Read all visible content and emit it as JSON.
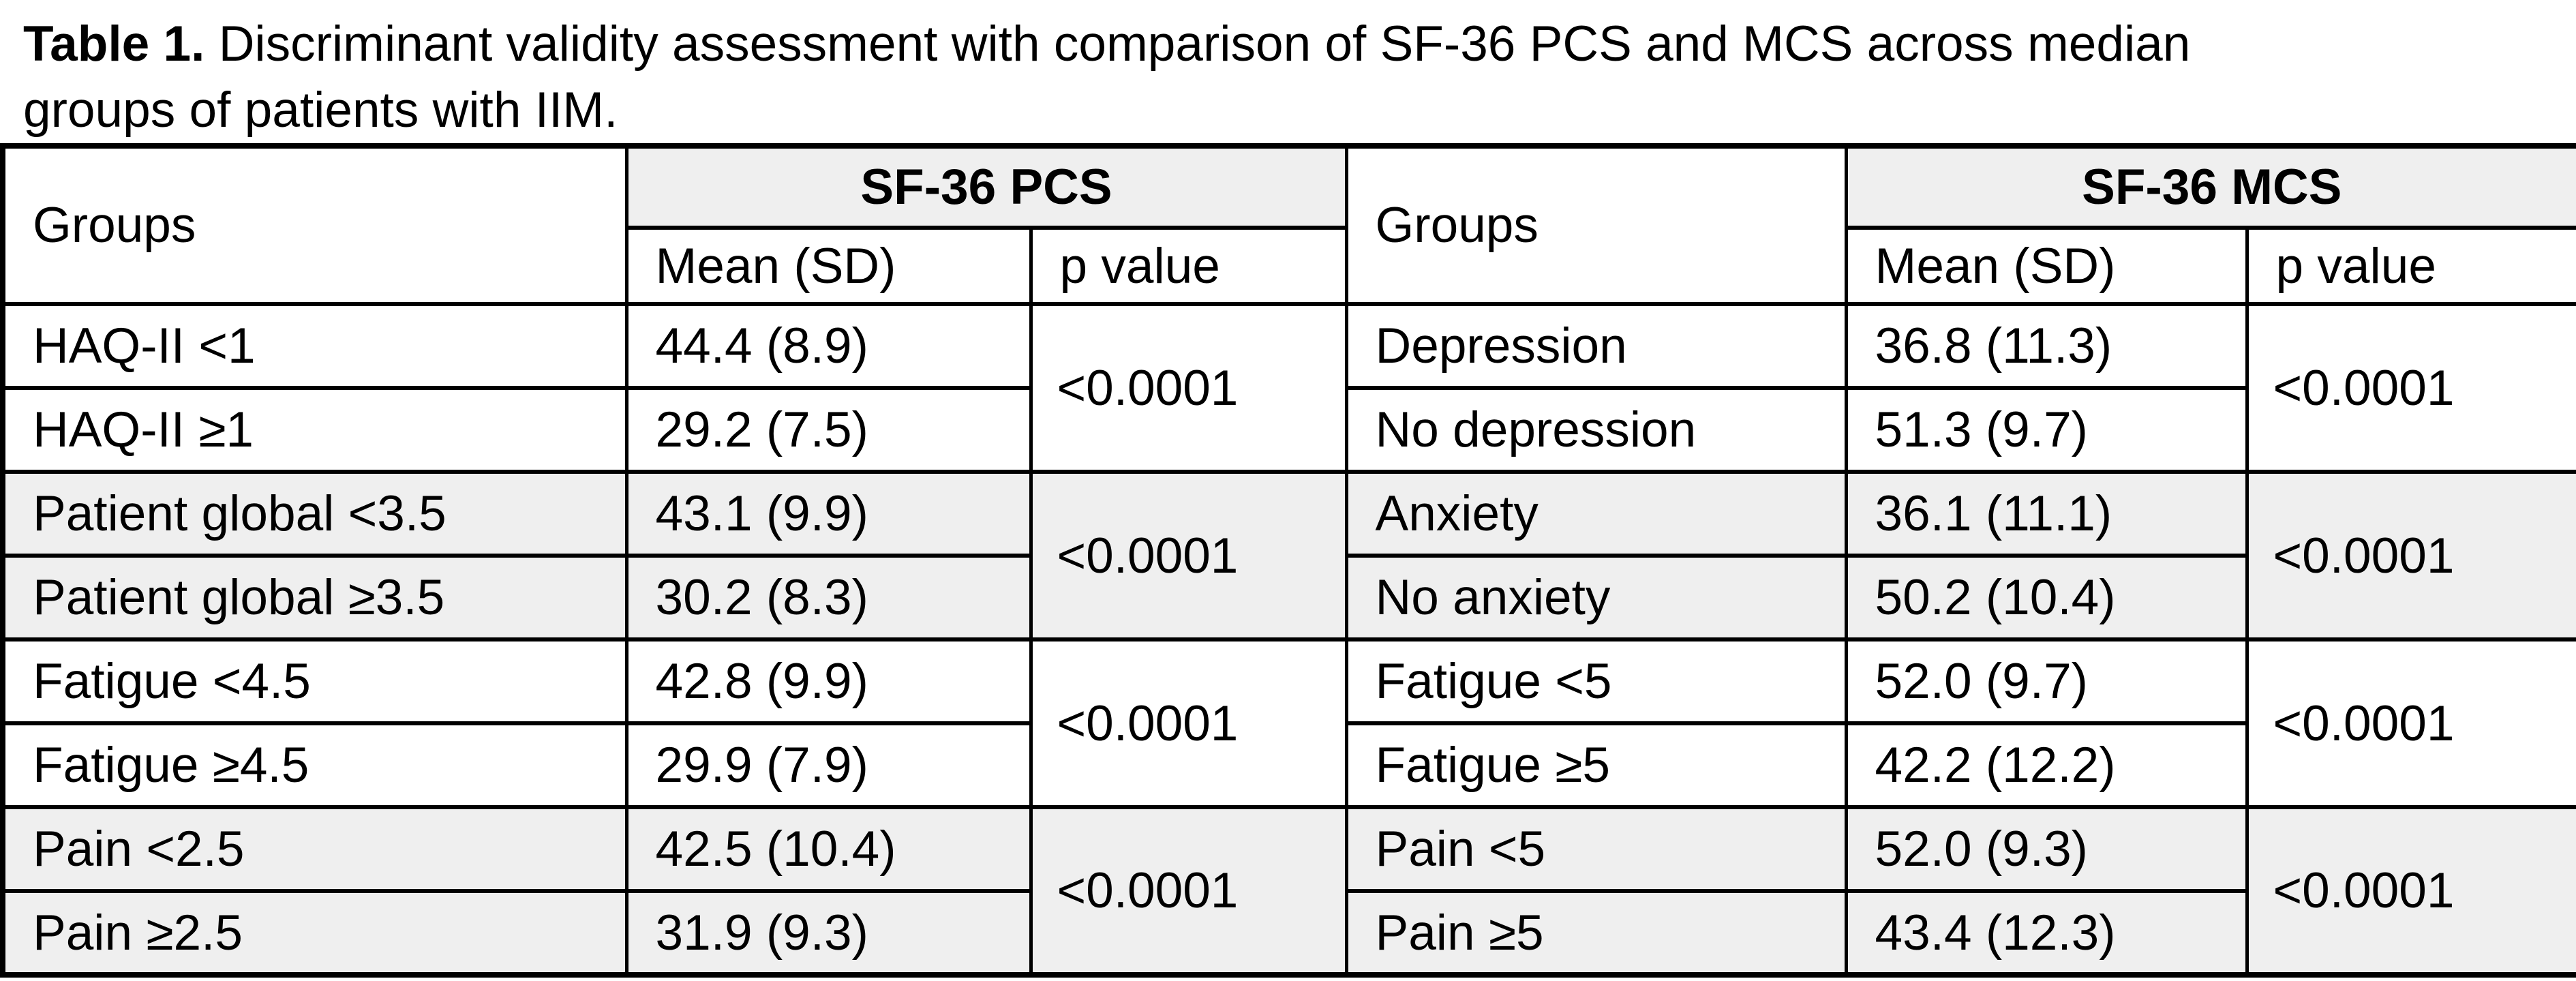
{
  "title": {
    "label": "Table 1.",
    "line1_rest": " Discriminant validity assessment with comparison of SF-36 PCS and MCS across median",
    "line2": "groups of patients with IIM."
  },
  "colors": {
    "shaded_row": "#efefef",
    "border": "#000000",
    "background": "#ffffff"
  },
  "table": {
    "left": {
      "groups_header": "Groups",
      "scale_header": "SF-36 PCS",
      "mean_header": "Mean (SD)",
      "p_header": "p value",
      "pairs": [
        {
          "row1": {
            "group": "HAQ-II <1",
            "mean": "44.4 (8.9)"
          },
          "row2": {
            "group": "HAQ-II ≥1",
            "mean": "29.2 (7.5)"
          },
          "p": "<0.0001"
        },
        {
          "row1": {
            "group": "Patient global <3.5",
            "mean": "43.1 (9.9)"
          },
          "row2": {
            "group": "Patient global ≥3.5",
            "mean": "30.2 (8.3)"
          },
          "p": "<0.0001"
        },
        {
          "row1": {
            "group": "Fatigue <4.5",
            "mean": "42.8 (9.9)"
          },
          "row2": {
            "group": "Fatigue ≥4.5",
            "mean": "29.9 (7.9)"
          },
          "p": "<0.0001"
        },
        {
          "row1": {
            "group": "Pain <2.5",
            "mean": "42.5 (10.4)"
          },
          "row2": {
            "group": "Pain ≥2.5",
            "mean": "31.9 (9.3)"
          },
          "p": "<0.0001"
        }
      ]
    },
    "right": {
      "groups_header": "Groups",
      "scale_header": "SF-36 MCS",
      "mean_header": "Mean (SD)",
      "p_header": "p value",
      "pairs": [
        {
          "row1": {
            "group": "Depression",
            "mean": "36.8 (11.3)"
          },
          "row2": {
            "group": "No depression",
            "mean": "51.3 (9.7)"
          },
          "p": "<0.0001"
        },
        {
          "row1": {
            "group": "Anxiety",
            "mean": "36.1 (11.1)"
          },
          "row2": {
            "group": "No anxiety",
            "mean": "50.2 (10.4)"
          },
          "p": "<0.0001"
        },
        {
          "row1": {
            "group": "Fatigue <5",
            "mean": "52.0 (9.7)"
          },
          "row2": {
            "group": "Fatigue ≥5",
            "mean": "42.2 (12.2)"
          },
          "p": "<0.0001"
        },
        {
          "row1": {
            "group": "Pain <5",
            "mean": "52.0 (9.3)"
          },
          "row2": {
            "group": "Pain ≥5",
            "mean": "43.4 (12.3)"
          },
          "p": "<0.0001"
        }
      ]
    }
  }
}
